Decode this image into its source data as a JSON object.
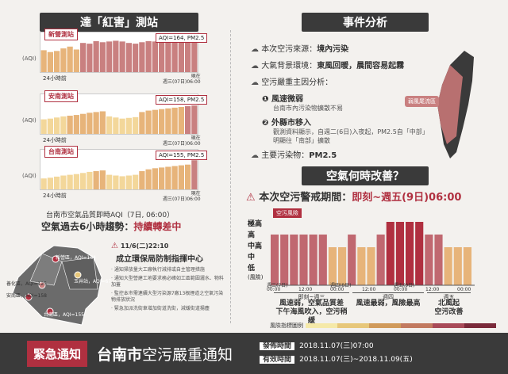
{
  "left_title": "達「紅害」測站",
  "aqi_axis": "(AQI)",
  "time_start": "24小時前",
  "time_now": "現在",
  "stations": [
    {
      "name": "新營測站",
      "aqi": "AQI=164, PM2.5",
      "time": "週三(07日)06:00",
      "values": [
        60,
        55,
        58,
        65,
        70,
        62,
        80,
        78,
        85,
        82,
        84,
        86,
        84,
        80,
        78,
        82,
        85,
        84,
        83,
        82,
        86,
        88,
        90,
        95
      ]
    },
    {
      "name": "安南測站",
      "aqi": "AQI=158, PM2.5",
      "time": "週三(07日)06:00",
      "values": [
        40,
        42,
        45,
        48,
        50,
        52,
        55,
        58,
        60,
        62,
        48,
        45,
        42,
        44,
        46,
        60,
        64,
        66,
        68,
        70,
        72,
        74,
        76,
        78
      ]
    },
    {
      "name": "台南測站",
      "aqi": "AQI=155, PM2.5",
      "time": "週三(07日)06:00",
      "values": [
        30,
        32,
        35,
        38,
        40,
        42,
        45,
        48,
        50,
        52,
        40,
        38,
        36,
        38,
        40,
        50,
        55,
        58,
        60,
        62,
        64,
        66,
        68,
        80
      ]
    }
  ],
  "realtime_caption": "台南市空氣品質即時AQI（7日, 06:00）",
  "trend_prefix": "空氣過去6小時趨勢：",
  "trend_value": "持續轉差中",
  "map_points": [
    "新營區，AQI=164",
    "善化區，AQI=125",
    "安南區，AQI=158",
    "玉井站，AQI=67",
    "台南區，AQI=155"
  ],
  "command": {
    "time": "11/6(二)22:10",
    "title": "成立環保局防制指揮中心",
    "items": [
      "通知掃放量大工廠執行減排或自主管理措施",
      "通知大型營建工地要求務必確如工區範圍灑水、物料加蓋",
      "監控本市需連續大型污染源7廠13根煙道之空氣污染物排放狀況",
      "緊急加派洗街車增加街道洗街，減緩街道揚塵"
    ]
  },
  "event_title": "事件分析",
  "event_lines": [
    {
      "k": "本次空污來源：",
      "v": "境內污染"
    },
    {
      "k": "大氣背景環境：",
      "v": "東風回暖，晨間容易起霧"
    },
    {
      "k": "空污嚴重主因分析：",
      "v": ""
    }
  ],
  "cause1_title": "風速微弱",
  "cause1_desc": "台南市內污染物擴散不易",
  "cause2_title": "外縣市移入",
  "cause2_desc": "觀測資料顯示，自週二(6日)入夜起，PM2.5自「中部」明顯往「南部」擴散",
  "main_pollutant_k": "主要污染物：",
  "main_pollutant_v": "PM2.5",
  "map_tag": "弱風尾流區",
  "improve_title": "空氣何時改善？",
  "alert_prefix": "本次空污警戒期間：",
  "alert_value": "即刻~週五(9日)06:00",
  "risk_tag": "空污風險",
  "risk_levels": [
    "極高",
    "高",
    "中高",
    "中",
    "低",
    "(風險)"
  ],
  "forecast_values": [
    4,
    4,
    4,
    4,
    4,
    4,
    3,
    3,
    4,
    3,
    3,
    4,
    5,
    5,
    5,
    5,
    4,
    4,
    3,
    3,
    3
  ],
  "x_ticks": [
    "00:00",
    "12:00",
    "00:00",
    "12:00",
    "00:00",
    "12:00",
    "00:00"
  ],
  "x_days": [
    "週三(7日)",
    "週四(8日)",
    "週五(9日)"
  ],
  "phase_labels": [
    "即刻~週三",
    "週四",
    "週五"
  ],
  "phase_desc": [
    "風速弱，空氣品質差\n下午海風吹入，空污稍緩",
    "風速最弱，風險最高",
    "北風起\n空污改善"
  ],
  "legend_label": "風險指標圖例",
  "legend_colors": [
    "#f5e9a8",
    "#e7c77a",
    "#d09a5a",
    "#c27a60",
    "#a84a58",
    "#7a2a3a"
  ],
  "bottom_badge": "緊急通知",
  "bottom_title_bold": "台南市",
  "bottom_title": "空污嚴重通知",
  "issue_k": "發佈時間",
  "issue_v": "2018.11.07(三)07:00",
  "valid_k": "有效時間",
  "valid_v": "2018.11.07(三)~2018.11.09(五)",
  "colors": {
    "accent": "#b03040",
    "dark": "#3a3a3a",
    "bar_high": "#c98080",
    "bar_mid": "#e7b47a",
    "bar_low": "#f3d79a"
  }
}
